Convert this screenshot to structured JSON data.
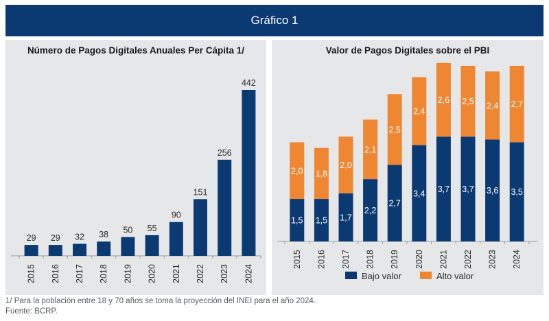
{
  "header": {
    "title": "Gráfico 1"
  },
  "footnotes": {
    "note": "1/ Para la población entre 18 y 70 años se toma la proyección del INEI para el año 2024.",
    "source": "Fuente: BCRP."
  },
  "colors": {
    "header": "#0b3a72",
    "bar": "#0b3a72",
    "bajo": "#0b3a72",
    "alto": "#ef8631",
    "panel": "#e6e7e9"
  },
  "chart_data": [
    {
      "type": "bar",
      "title": "Número de Pagos Digitales Anuales Per Cápita 1/",
      "categories": [
        "2015",
        "2016",
        "2017",
        "2018",
        "2019",
        "2020",
        "2021",
        "2022",
        "2023",
        "2024"
      ],
      "values": [
        29,
        29,
        32,
        38,
        50,
        55,
        90,
        151,
        256,
        442
      ],
      "ylim": [
        0,
        442
      ],
      "grid": false,
      "data_labels": true
    },
    {
      "type": "bar",
      "stacked": true,
      "title": "Valor de Pagos Digitales sobre el PBI",
      "categories": [
        "2015",
        "2016",
        "2017",
        "2018",
        "2019",
        "2020",
        "2021",
        "2022",
        "2023",
        "2024"
      ],
      "series": [
        {
          "name": "Bajo valor",
          "values": [
            1.5,
            1.5,
            1.7,
            2.2,
            2.7,
            3.4,
            3.7,
            3.7,
            3.6,
            3.5
          ],
          "labels": [
            "1,5",
            "1,5",
            "1,7",
            "2,2",
            "2,7",
            "3,4",
            "3,7",
            "3,7",
            "3,6",
            "3,5"
          ]
        },
        {
          "name": "Alto valor",
          "values": [
            2.0,
            1.8,
            2.0,
            2.1,
            2.5,
            2.4,
            2.6,
            2.5,
            2.4,
            2.7
          ],
          "labels": [
            "2,0",
            "1,8",
            "2,0",
            "2,1",
            "2,5",
            "2,4",
            "2,6",
            "2,5",
            "2,4",
            "2,7"
          ]
        }
      ],
      "legend": "bottom",
      "grid": false,
      "data_labels": true
    }
  ]
}
